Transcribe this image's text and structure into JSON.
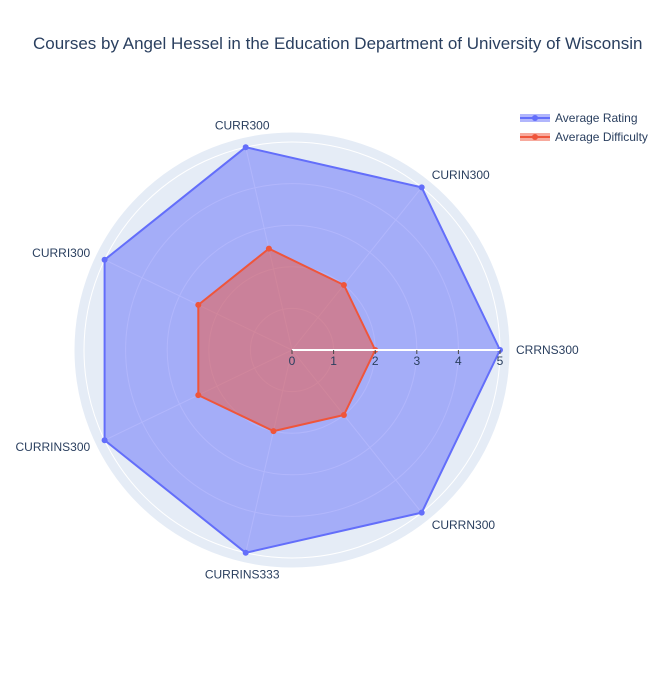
{
  "chart_data": {
    "type": "radar",
    "title": "Courses by Angel Hessel in the Education Department of University of Wisconsin",
    "categories": [
      "CRRNS300",
      "CURIN300",
      "CURR300",
      "CURRI300",
      "CURRINS300",
      "CURRINS333",
      "CURRN300"
    ],
    "radial_range": [
      0,
      5
    ],
    "radial_ticks": [
      "0",
      "1",
      "2",
      "3",
      "4",
      "5"
    ],
    "series": [
      {
        "name": "Average Rating",
        "values": [
          5,
          5,
          5,
          5,
          5,
          5,
          5
        ],
        "color": "#636efa",
        "fill": "rgba(99,110,250,0.5)"
      },
      {
        "name": "Average Difficulty",
        "values": [
          2,
          2,
          2.5,
          2.5,
          2.5,
          2,
          2
        ],
        "color": "#ef553b",
        "fill": "rgba(239,85,59,0.5)"
      }
    ],
    "legend_position": "top-right",
    "grid": true
  }
}
